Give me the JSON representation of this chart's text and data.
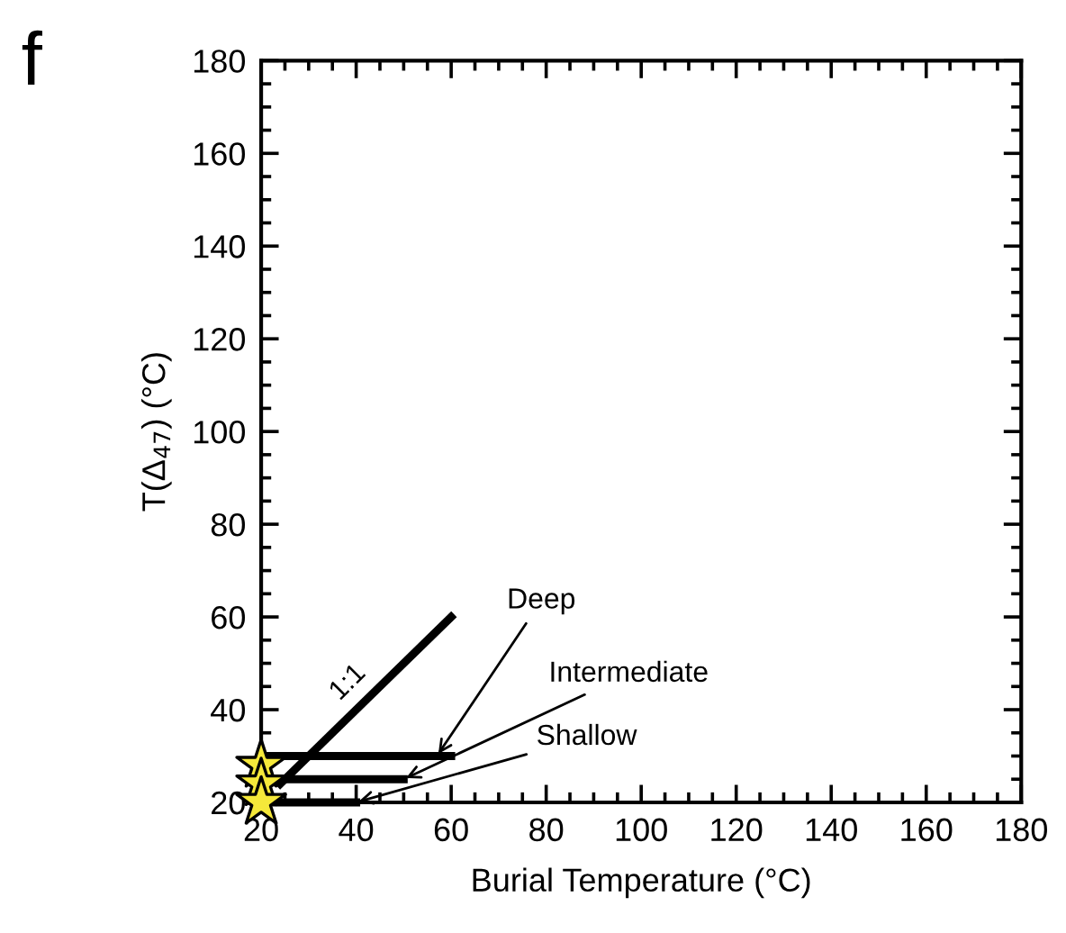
{
  "chart_data": {
    "type": "line",
    "xlabel": "Burial Temperature (°C)",
    "ylabel": "T(Δ$_{47}$) (°C)",
    "xlim": [
      20,
      180
    ],
    "ylim": [
      20,
      180
    ],
    "xticks": [
      20,
      40,
      60,
      80,
      100,
      120,
      140,
      160,
      180
    ],
    "yticks": [
      20,
      40,
      60,
      80,
      100,
      120,
      140,
      160,
      180
    ],
    "grid": false,
    "legend": false,
    "marker": "none",
    "line_style": "solid",
    "series": [
      {
        "color": "#000000",
        "x": [
          24,
          60
        ],
        "values": [
          24,
          60
        ]
      },
      {
        "color": "#000000",
        "x": [
          20,
          60
        ],
        "values": [
          30,
          30
        ]
      },
      {
        "color": "#000000",
        "x": [
          20,
          50
        ],
        "values": [
          25,
          25
        ]
      },
      {
        "color": "#000000",
        "x": [
          20,
          40
        ],
        "values": [
          20,
          20
        ]
      },
      {
        "type": "scatter",
        "marker": "star",
        "color": "#f5e83a",
        "x": [
          20,
          20,
          20
        ],
        "values": [
          28,
          24,
          20
        ]
      }
    ],
    "annotations": [
      "f",
      "1:1",
      {
        "text": "Deep",
        "x": 57,
        "y": 30
      },
      {
        "text": "Intermediate",
        "x": 50,
        "y": 25
      },
      {
        "text": "Shallow",
        "x": 40,
        "y": 20
      }
    ]
  }
}
